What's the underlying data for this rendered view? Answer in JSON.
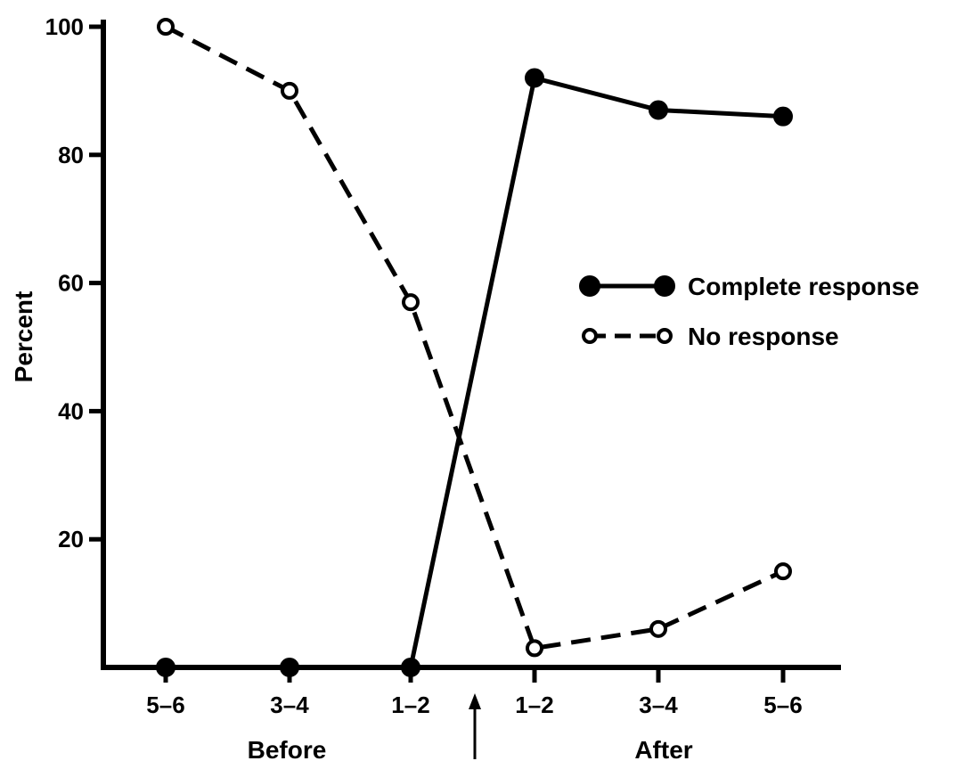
{
  "chart_data": {
    "type": "line",
    "title": "",
    "ylabel": "Percent",
    "ylim": [
      0,
      100
    ],
    "yticks": [
      20,
      40,
      60,
      80,
      100
    ],
    "grid": false,
    "categories": [
      "5–6",
      "3–4",
      "1–2",
      "1–2",
      "3–4",
      "5–6"
    ],
    "groups": [
      {
        "label": "Before",
        "indices": [
          0,
          1,
          2
        ]
      },
      {
        "label": "After",
        "indices": [
          3,
          4,
          5
        ]
      }
    ],
    "marker_between": [
      2,
      3
    ],
    "legend_position": "center-right",
    "series": [
      {
        "name": "Complete response",
        "values": [
          0,
          0,
          0,
          92,
          87,
          86
        ],
        "line_style": "solid",
        "marker": "filled-circle",
        "color": "#000000"
      },
      {
        "name": "No response",
        "values": [
          100,
          90,
          57,
          3,
          6,
          15
        ],
        "line_style": "dashed",
        "marker": "open-circle",
        "color": "#000000"
      }
    ]
  }
}
